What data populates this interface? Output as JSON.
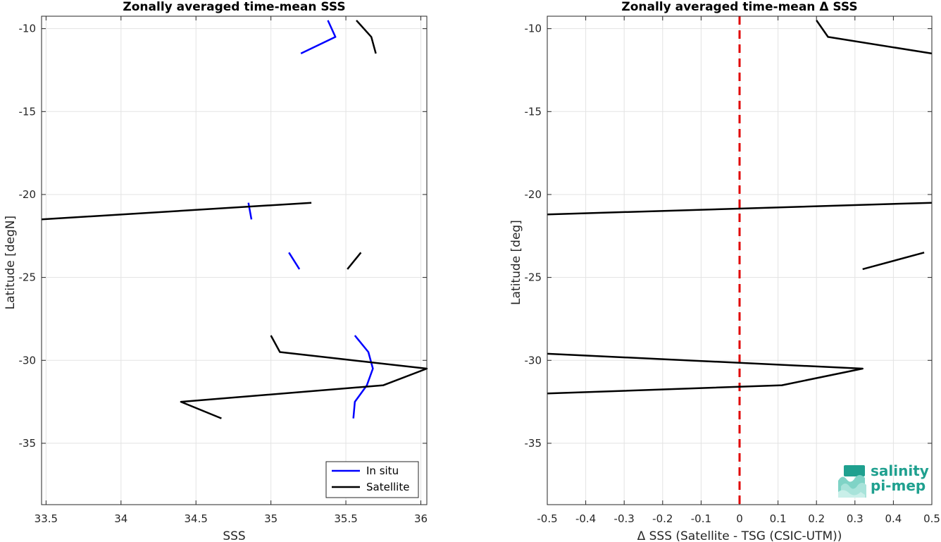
{
  "chart_data": [
    {
      "type": "line",
      "title": "Zonally averaged time-mean SSS",
      "xlabel": "SSS",
      "ylabel": "Latitude [degN]",
      "xlim": [
        33.47,
        36.04
      ],
      "ylim": [
        -38.7,
        -9.25
      ],
      "xticks": [
        "33.5",
        "34",
        "34.5",
        "35",
        "35.5",
        "36"
      ],
      "yticks": [
        "-10",
        "-15",
        "-20",
        "-25",
        "-30",
        "-35"
      ],
      "grid": true,
      "legend": {
        "position": "bottom-right",
        "entries": [
          "In situ",
          "Satellite"
        ]
      },
      "series": [
        {
          "name": "In situ",
          "color": "#0000ff",
          "segments": [
            [
              [
                35.2,
                -11.5
              ],
              [
                35.43,
                -10.5
              ],
              [
                35.38,
                -9.5
              ]
            ],
            [
              [
                34.87,
                -21.5
              ],
              [
                34.85,
                -20.5
              ]
            ],
            [
              [
                35.19,
                -24.5
              ],
              [
                35.12,
                -23.5
              ]
            ],
            [
              [
                35.55,
                -33.5
              ],
              [
                35.56,
                -32.5
              ],
              [
                35.64,
                -31.5
              ],
              [
                35.68,
                -30.5
              ],
              [
                35.65,
                -29.5
              ],
              [
                35.56,
                -28.5
              ]
            ]
          ]
        },
        {
          "name": "Satellite",
          "color": "#000000",
          "segments": [
            [
              [
                35.7,
                -11.5
              ],
              [
                35.67,
                -10.5
              ],
              [
                35.57,
                -9.5
              ]
            ],
            [
              [
                33.47,
                -21.5
              ],
              [
                35.27,
                -20.5
              ]
            ],
            [
              [
                35.51,
                -24.5
              ],
              [
                35.6,
                -23.5
              ]
            ],
            [
              [
                34.67,
                -33.5
              ],
              [
                34.4,
                -32.5
              ],
              [
                35.75,
                -31.5
              ],
              [
                36.04,
                -30.5
              ],
              [
                35.06,
                -29.5
              ],
              [
                35.0,
                -28.5
              ]
            ]
          ]
        }
      ]
    },
    {
      "type": "line",
      "title": "Zonally averaged time-mean Δ SSS",
      "xlabel": "Δ SSS (Satellite - TSG (CSIC-UTM))",
      "ylabel": "Latitude [deg]",
      "xlim": [
        -0.5,
        0.5
      ],
      "ylim": [
        -38.7,
        -9.25
      ],
      "xticks": [
        "-0.5",
        "-0.4",
        "-0.3",
        "-0.2",
        "-0.1",
        "0",
        "0.1",
        "0.2",
        "0.3",
        "0.4",
        "0.5"
      ],
      "yticks": [
        "-10",
        "-15",
        "-20",
        "-25",
        "-30",
        "-35"
      ],
      "grid": true,
      "reference_line": {
        "x": 0,
        "color": "#e00000",
        "style": "dashed"
      },
      "series": [
        {
          "name": "",
          "color": "#000000",
          "segments": [
            [
              [
                0.5,
                -11.5
              ],
              [
                0.23,
                -10.5
              ],
              [
                0.2,
                -9.5
              ]
            ],
            [
              [
                -0.5,
                -21.2
              ],
              [
                0.5,
                -20.5
              ]
            ],
            [
              [
                0.32,
                -24.5
              ],
              [
                0.48,
                -23.5
              ]
            ],
            [
              [
                -0.5,
                -32.0
              ],
              [
                0.11,
                -31.5
              ],
              [
                0.32,
                -30.5
              ],
              [
                -0.5,
                -29.6
              ]
            ]
          ]
        }
      ]
    }
  ],
  "logo": {
    "line1": "salinity",
    "line2": "pi-mep",
    "color": "#1fa08f"
  }
}
